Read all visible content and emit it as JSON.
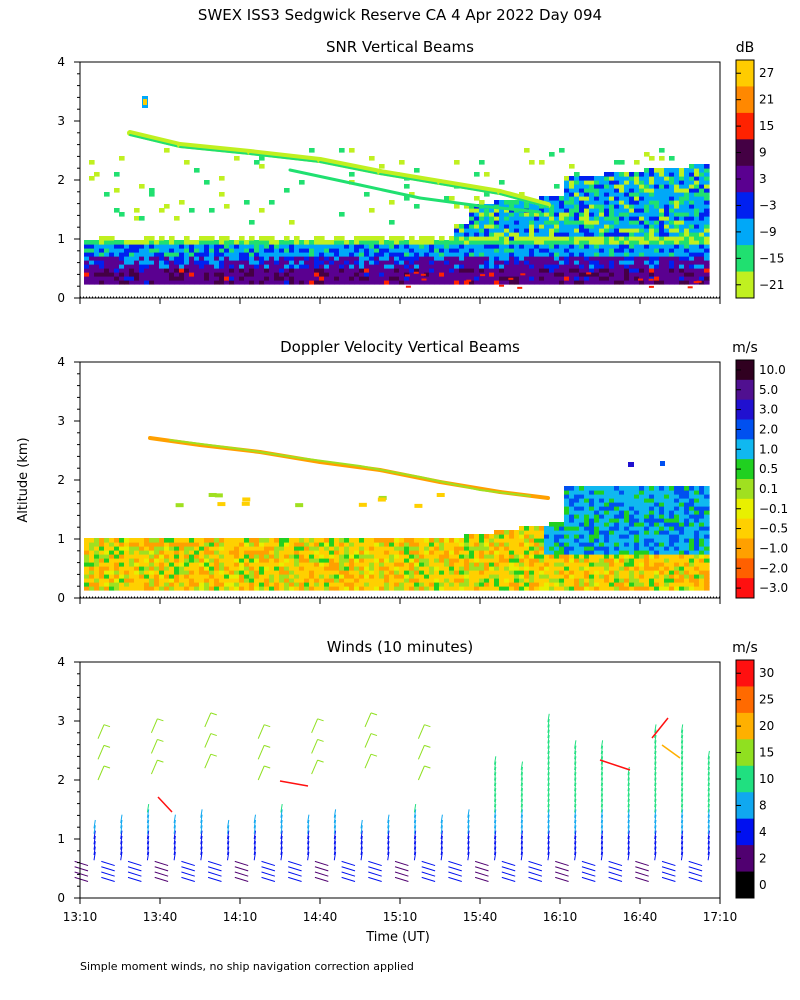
{
  "title": "SWEX ISS3 Sedgwick Reserve CA   4 Apr 2022 Day 094",
  "footnote": "Simple moment winds, no ship navigation correction applied",
  "ylabel": "Altitude (km)",
  "xlabel": "Time (UT)",
  "x_ticks": [
    "13:10",
    "13:40",
    "14:10",
    "14:40",
    "15:10",
    "15:40",
    "16:10",
    "16:40",
    "17:10"
  ],
  "y_ticks": [
    "0",
    "1",
    "2",
    "3",
    "4"
  ],
  "chart_data": [
    {
      "type": "heatmap",
      "title": "SNR Vertical Beams",
      "xlabel": "Time (UT)",
      "ylabel": "Altitude (km)",
      "xlim": [
        "13:10",
        "17:10"
      ],
      "ylim": [
        0,
        4
      ],
      "colorbar_unit": "dB",
      "colorbar_labels": [
        "27",
        "21",
        "15",
        "9",
        "3",
        "−3",
        "−9",
        "−15",
        "−21"
      ],
      "colorbar_colors": [
        "#ffcc00",
        "#ff8800",
        "#ff2200",
        "#440044",
        "#5a0090",
        "#0020f0",
        "#00a8f8",
        "#20e070",
        "#c0f020"
      ]
    },
    {
      "type": "heatmap",
      "title": "Doppler Velocity Vertical Beams",
      "xlabel": "Time (UT)",
      "ylabel": "Altitude (km)",
      "xlim": [
        "13:10",
        "17:10"
      ],
      "ylim": [
        0,
        4
      ],
      "colorbar_unit": "m/s",
      "colorbar_labels": [
        "10.0",
        "5.0",
        "3.0",
        "2.0",
        "1.0",
        "0.5",
        "0.1",
        "−0.1",
        "−0.5",
        "−1.0",
        "−2.0",
        "−3.0"
      ],
      "colorbar_colors": [
        "#300020",
        "#501090",
        "#2010d0",
        "#0050f0",
        "#10b8f0",
        "#20d020",
        "#a0e020",
        "#e8f000",
        "#ffd000",
        "#ffa000",
        "#ff6000",
        "#ff1010"
      ]
    },
    {
      "type": "scatter",
      "title": "Winds (10 minutes)",
      "xlabel": "Time (UT)",
      "ylabel": "Altitude (km)",
      "xlim": [
        "13:10",
        "17:10"
      ],
      "ylim": [
        0,
        4
      ],
      "colorbar_unit": "m/s",
      "colorbar_labels": [
        "30",
        "25",
        "20",
        "15",
        "10",
        "8",
        "4",
        "2",
        "0"
      ],
      "colorbar_colors": [
        "#ff1010",
        "#ff6a00",
        "#ffb000",
        "#90e020",
        "#20e080",
        "#10a8f0",
        "#0010f0",
        "#500070",
        "#000000"
      ],
      "profile_count": 24
    }
  ]
}
